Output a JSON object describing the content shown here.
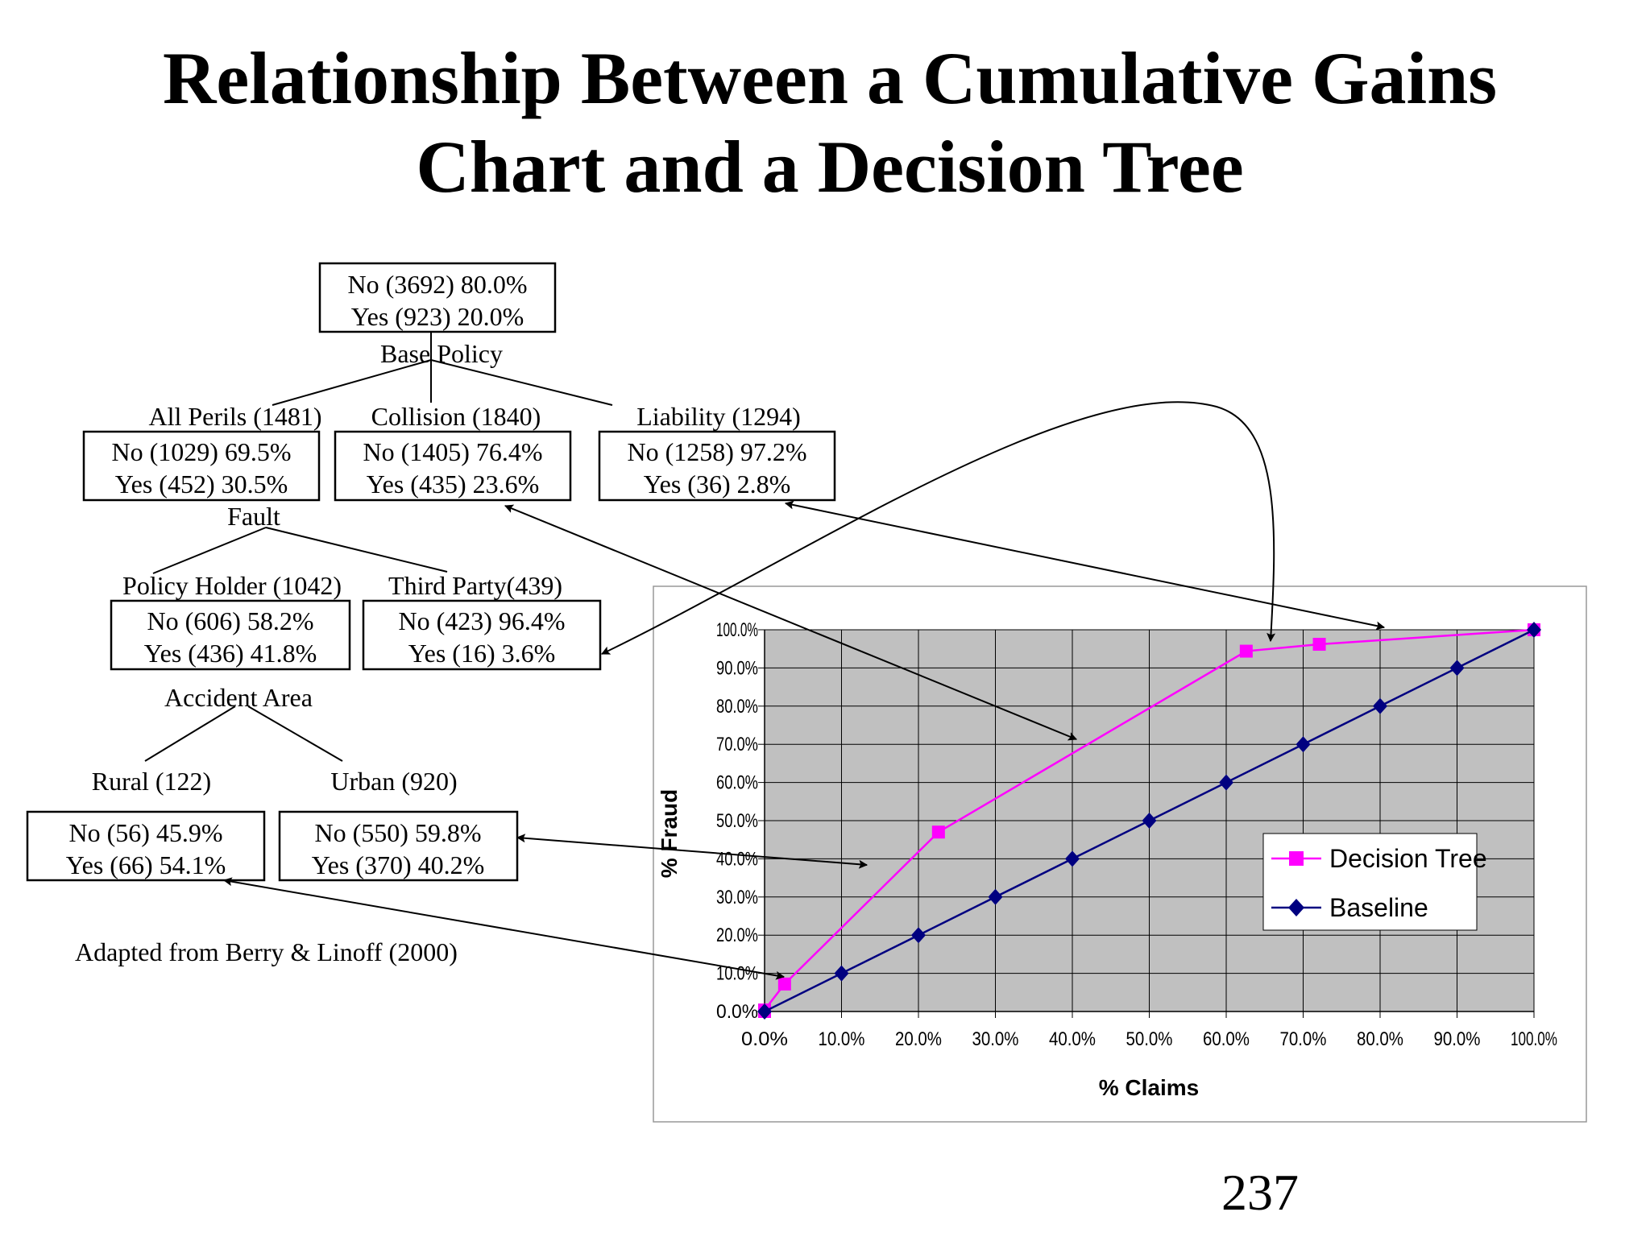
{
  "title_line1": "Relationship Between a Cumulative Gains",
  "title_line2": "Chart and a Decision Tree",
  "page_number": "237",
  "attribution": "Adapted from Berry & Linoff (2000)",
  "tree": {
    "root": {
      "no": "No  (3692) 80.0%",
      "yes": "Yes  (923)  20.0%",
      "split": "Base Policy"
    },
    "all_perils": {
      "label": "All Perils (1481)",
      "no": "No  (1029) 69.5%",
      "yes": "Yes  (452) 30.5%",
      "split": "Fault"
    },
    "collision": {
      "label": "Collision (1840)",
      "no": "No  (1405) 76.4%",
      "yes": "Yes   (435) 23.6%"
    },
    "liability": {
      "label": "Liability (1294)",
      "no": "No  (1258) 97.2%",
      "yes": "Yes    (36)    2.8%"
    },
    "policy_holder": {
      "label": "Policy Holder (1042)",
      "no": "No   (606) 58.2%",
      "yes": "Yes  (436) 41.8%",
      "split": "Accident Area"
    },
    "third_party": {
      "label": "Third Party(439)",
      "no": "No  (423) 96.4%",
      "yes": "Yes   (16)   3.6%"
    },
    "rural": {
      "label": "Rural (122)",
      "no": "No   (56) 45.9%",
      "yes": "Yes  (66) 54.1%"
    },
    "urban": {
      "label": "Urban (920)",
      "no": "No   (550) 59.8%",
      "yes": "Yes  (370) 40.2%"
    }
  },
  "chart_data": {
    "type": "line",
    "xlabel": "% Claims",
    "ylabel": "% Fraud",
    "xlim": [
      0,
      100
    ],
    "ylim": [
      0,
      100
    ],
    "x_ticks": [
      "0.0%",
      "10.0%",
      "20.0%",
      "30.0%",
      "40.0%",
      "50.0%",
      "60.0%",
      "70.0%",
      "80.0%",
      "90.0%",
      "100.0%"
    ],
    "y_ticks": [
      "0.0%",
      "10.0%",
      "20.0%",
      "30.0%",
      "40.0%",
      "50.0%",
      "60.0%",
      "70.0%",
      "80.0%",
      "90.0%",
      "100.0%"
    ],
    "grid": true,
    "legend_position": "right",
    "series": [
      {
        "name": "Decision Tree",
        "color": "#ff00ff",
        "marker": "square",
        "points": [
          [
            0,
            0
          ],
          [
            0,
            0.4
          ],
          [
            2.6,
            7.2
          ],
          [
            22.6,
            47.0
          ],
          [
            62.6,
            94.4
          ],
          [
            72.1,
            96.2
          ],
          [
            100,
            100
          ]
        ]
      },
      {
        "name": "Baseline",
        "color": "#000080",
        "marker": "diamond",
        "points": [
          [
            0,
            0
          ],
          [
            10,
            10
          ],
          [
            20,
            20
          ],
          [
            30,
            30
          ],
          [
            40,
            40
          ],
          [
            50,
            50
          ],
          [
            60,
            60
          ],
          [
            70,
            70
          ],
          [
            80,
            80
          ],
          [
            90,
            90
          ],
          [
            100,
            100
          ]
        ]
      }
    ]
  }
}
